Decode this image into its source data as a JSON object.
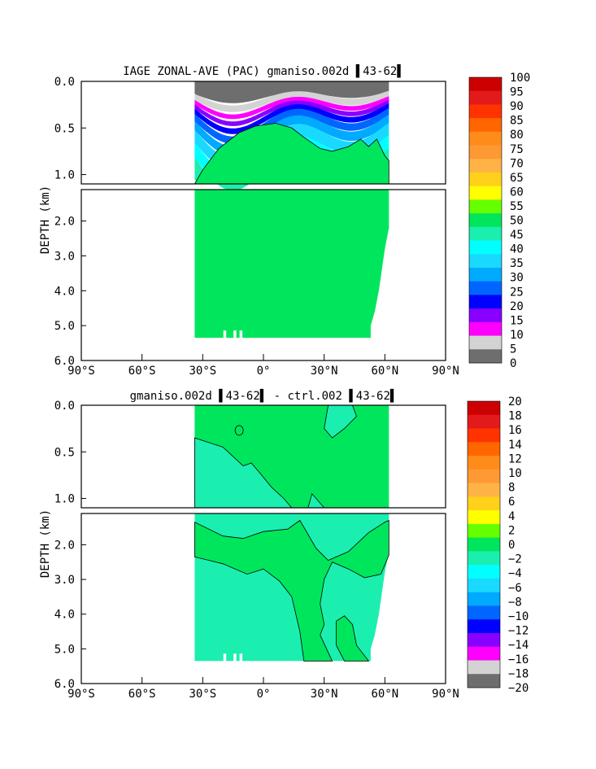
{
  "chart_data": [
    {
      "type": "heatmap",
      "title": "IAGE ZONAL-AVE (PAC) gmaniso.002d ▌43-62▌",
      "ylabel": "DEPTH (km)",
      "x_ticks": [
        "90°S",
        "60°S",
        "30°S",
        "0°",
        "30°N",
        "60°N",
        "90°N"
      ],
      "x_range": [
        -90,
        90
      ],
      "upper_y_ticks": [
        "0.0",
        "0.5",
        "1.0"
      ],
      "upper_y_range": [
        0,
        1.1
      ],
      "lower_y_ticks": [
        "2.0",
        "3.0",
        "4.0",
        "5.0",
        "6.0"
      ],
      "lower_y_range": [
        1.1,
        6.0
      ],
      "data_extent_lat": [
        -34,
        62
      ],
      "colorbar_labels": [
        "100",
        "95",
        "90",
        "85",
        "80",
        "75",
        "70",
        "65",
        "60",
        "55",
        "50",
        "45",
        "40",
        "35",
        "30",
        "25",
        "20",
        "15",
        "10",
        "5",
        "0"
      ],
      "colors": [
        "#cc0000",
        "#e31a1c",
        "#ff3300",
        "#ff6600",
        "#ff8c1a",
        "#ff9933",
        "#ffb347",
        "#ffd11a",
        "#ffff00",
        "#66ff00",
        "#00e65c",
        "#1aefb0",
        "#00ffff",
        "#1ad9ff",
        "#00aaff",
        "#0066ff",
        "#0000ff",
        "#8800ff",
        "#ff00ff",
        "#d3d3d3",
        "#6e6e6e"
      ]
    },
    {
      "type": "heatmap",
      "title": "gmaniso.002d ▌43-62▌ - ctrl.002 ▌43-62▌",
      "ylabel": "DEPTH (km)",
      "x_ticks": [
        "90°S",
        "60°S",
        "30°S",
        "0°",
        "30°N",
        "60°N",
        "90°N"
      ],
      "x_range": [
        -90,
        90
      ],
      "upper_y_ticks": [
        "0.0",
        "0.5",
        "1.0"
      ],
      "upper_y_range": [
        0,
        1.1
      ],
      "lower_y_ticks": [
        "2.0",
        "3.0",
        "4.0",
        "5.0",
        "6.0"
      ],
      "lower_y_range": [
        1.1,
        6.0
      ],
      "data_extent_lat": [
        -34,
        62
      ],
      "colorbar_labels": [
        "20",
        "18",
        "16",
        "14",
        "12",
        "10",
        "8",
        "6",
        "4",
        "2",
        "0",
        "−2",
        "−4",
        "−6",
        "−8",
        "−10",
        "−12",
        "−14",
        "−16",
        "−18",
        "−20"
      ],
      "colors": [
        "#cc0000",
        "#e31a1c",
        "#ff3300",
        "#ff6600",
        "#ff8c1a",
        "#ff9933",
        "#ffb347",
        "#ffd11a",
        "#ffff00",
        "#66ff00",
        "#00e65c",
        "#1aefb0",
        "#00ffff",
        "#1ad9ff",
        "#00aaff",
        "#0066ff",
        "#0000ff",
        "#8800ff",
        "#ff00ff",
        "#d3d3d3",
        "#6e6e6e"
      ]
    }
  ]
}
